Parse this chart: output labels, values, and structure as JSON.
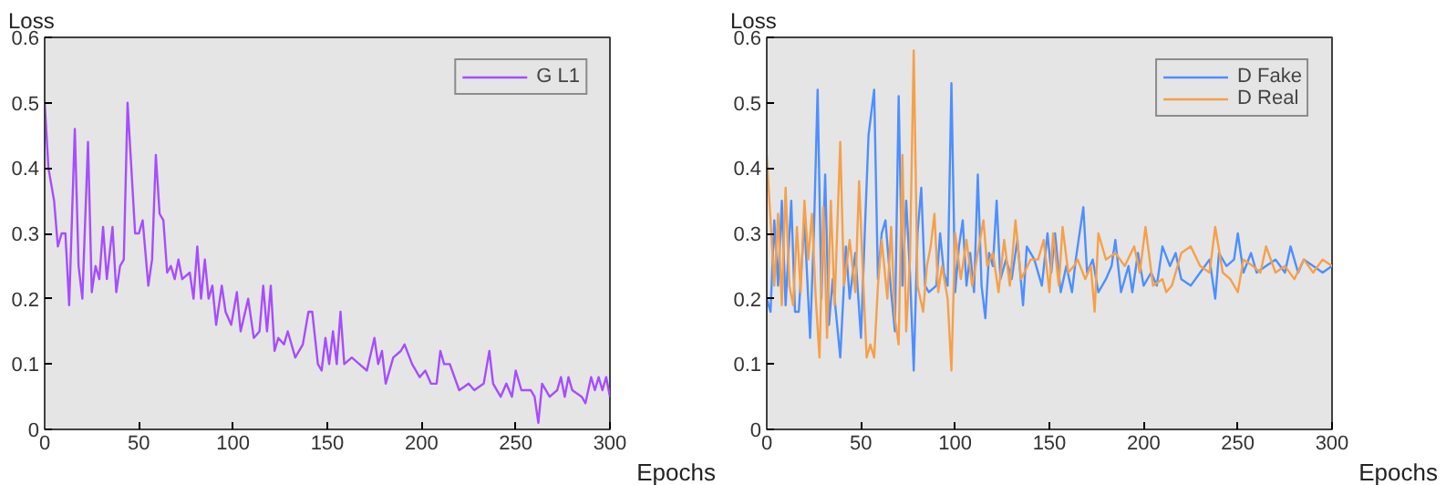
{
  "chart_data": [
    {
      "type": "line",
      "xlabel": "Epochs",
      "ylabel": "Loss",
      "xlim": [
        0,
        300
      ],
      "ylim": [
        0,
        0.6
      ],
      "xticks": [
        0,
        50,
        100,
        150,
        200,
        250,
        300
      ],
      "yticks": [
        0,
        0.1,
        0.2,
        0.3,
        0.4,
        0.5,
        0.6
      ],
      "legend": "top right",
      "series": [
        {
          "name": "G L1",
          "color": "#a64dff",
          "x": [
            0,
            2,
            5,
            7,
            9,
            11,
            13,
            16,
            18,
            20,
            23,
            25,
            27,
            29,
            31,
            33,
            36,
            38,
            40,
            42,
            44,
            46,
            48,
            50,
            52,
            55,
            57,
            59,
            61,
            63,
            65,
            67,
            69,
            71,
            73,
            77,
            79,
            81,
            83,
            85,
            87,
            89,
            91,
            94,
            96,
            99,
            102,
            104,
            108,
            111,
            114,
            116,
            118,
            120,
            122,
            124,
            127,
            129,
            133,
            137,
            140,
            142,
            145,
            147,
            149,
            151,
            153,
            155,
            157,
            159,
            163,
            167,
            171,
            175,
            177,
            179,
            181,
            185,
            189,
            191,
            195,
            199,
            202,
            205,
            208,
            210,
            212,
            215,
            220,
            225,
            228,
            233,
            236,
            238,
            242,
            245,
            248,
            250,
            253,
            258,
            260,
            262,
            264,
            268,
            272,
            274,
            276,
            278,
            280,
            285,
            287,
            290,
            292,
            294,
            296,
            298,
            300
          ],
          "values": [
            0.5,
            0.4,
            0.35,
            0.28,
            0.3,
            0.3,
            0.19,
            0.46,
            0.25,
            0.2,
            0.44,
            0.21,
            0.25,
            0.23,
            0.31,
            0.23,
            0.31,
            0.21,
            0.25,
            0.26,
            0.5,
            0.4,
            0.3,
            0.3,
            0.32,
            0.22,
            0.26,
            0.42,
            0.33,
            0.32,
            0.24,
            0.25,
            0.23,
            0.26,
            0.23,
            0.24,
            0.2,
            0.28,
            0.2,
            0.26,
            0.2,
            0.22,
            0.16,
            0.22,
            0.18,
            0.16,
            0.21,
            0.15,
            0.2,
            0.14,
            0.15,
            0.22,
            0.15,
            0.22,
            0.12,
            0.14,
            0.13,
            0.15,
            0.11,
            0.13,
            0.18,
            0.18,
            0.1,
            0.09,
            0.14,
            0.1,
            0.15,
            0.1,
            0.18,
            0.1,
            0.11,
            0.1,
            0.09,
            0.14,
            0.1,
            0.12,
            0.07,
            0.11,
            0.12,
            0.13,
            0.1,
            0.08,
            0.09,
            0.07,
            0.07,
            0.12,
            0.1,
            0.1,
            0.06,
            0.07,
            0.06,
            0.07,
            0.12,
            0.07,
            0.05,
            0.07,
            0.05,
            0.09,
            0.06,
            0.06,
            0.05,
            0.01,
            0.07,
            0.05,
            0.06,
            0.08,
            0.05,
            0.08,
            0.06,
            0.05,
            0.04,
            0.08,
            0.06,
            0.08,
            0.06,
            0.08,
            0.05
          ]
        }
      ]
    },
    {
      "type": "line",
      "xlabel": "Epochs",
      "ylabel": "Loss",
      "xlim": [
        0,
        300
      ],
      "ylim": [
        0,
        0.6
      ],
      "xticks": [
        0,
        50,
        100,
        150,
        200,
        250,
        300
      ],
      "yticks": [
        0,
        0.1,
        0.2,
        0.3,
        0.4,
        0.5,
        0.6
      ],
      "legend": "top right",
      "series": [
        {
          "name": "D Fake",
          "color": "#4d8fff",
          "x": [
            0,
            2,
            4,
            6,
            8,
            10,
            13,
            15,
            17,
            20,
            23,
            25,
            27,
            29,
            31,
            33,
            35,
            39,
            42,
            44,
            47,
            50,
            52,
            54,
            57,
            59,
            61,
            63,
            66,
            68,
            70,
            72,
            74,
            76,
            78,
            80,
            82,
            84,
            86,
            90,
            92,
            94,
            96,
            98,
            100,
            102,
            104,
            106,
            108,
            110,
            112,
            114,
            116,
            118,
            120,
            122,
            124,
            127,
            130,
            133,
            136,
            138,
            142,
            146,
            149,
            151,
            153,
            156,
            159,
            162,
            164,
            168,
            170,
            173,
            176,
            180,
            183,
            185,
            188,
            192,
            194,
            197,
            200,
            204,
            207,
            210,
            214,
            217,
            220,
            225,
            230,
            235,
            238,
            240,
            244,
            248,
            250,
            253,
            257,
            260,
            265,
            270,
            275,
            278,
            282,
            285,
            290,
            295,
            300
          ],
          "values": [
            0.2,
            0.18,
            0.32,
            0.22,
            0.35,
            0.19,
            0.35,
            0.18,
            0.18,
            0.32,
            0.14,
            0.3,
            0.52,
            0.2,
            0.39,
            0.16,
            0.23,
            0.11,
            0.28,
            0.2,
            0.27,
            0.14,
            0.3,
            0.45,
            0.52,
            0.23,
            0.3,
            0.32,
            0.21,
            0.15,
            0.51,
            0.22,
            0.35,
            0.24,
            0.09,
            0.3,
            0.37,
            0.22,
            0.21,
            0.22,
            0.3,
            0.24,
            0.22,
            0.53,
            0.21,
            0.28,
            0.32,
            0.22,
            0.27,
            0.21,
            0.39,
            0.22,
            0.17,
            0.27,
            0.25,
            0.35,
            0.23,
            0.26,
            0.23,
            0.29,
            0.19,
            0.28,
            0.26,
            0.22,
            0.3,
            0.24,
            0.3,
            0.21,
            0.25,
            0.21,
            0.26,
            0.34,
            0.24,
            0.26,
            0.21,
            0.23,
            0.25,
            0.29,
            0.21,
            0.25,
            0.21,
            0.27,
            0.22,
            0.24,
            0.22,
            0.28,
            0.25,
            0.27,
            0.23,
            0.22,
            0.24,
            0.26,
            0.2,
            0.27,
            0.25,
            0.26,
            0.3,
            0.24,
            0.27,
            0.24,
            0.25,
            0.26,
            0.24,
            0.28,
            0.24,
            0.26,
            0.25,
            0.24,
            0.25
          ]
        },
        {
          "name": "D Real",
          "color": "#f5a04a",
          "x": [
            0,
            2,
            4,
            6,
            8,
            10,
            12,
            14,
            16,
            18,
            20,
            22,
            24,
            26,
            28,
            30,
            32,
            34,
            36,
            39,
            41,
            44,
            47,
            49,
            51,
            53,
            55,
            57,
            59,
            61,
            64,
            66,
            68,
            70,
            72,
            74,
            76,
            78,
            80,
            83,
            85,
            87,
            89,
            91,
            93,
            96,
            98,
            100,
            103,
            106,
            109,
            112,
            115,
            117,
            120,
            123,
            126,
            129,
            132,
            135,
            140,
            144,
            147,
            150,
            152,
            155,
            157,
            160,
            163,
            165,
            169,
            172,
            174,
            176,
            180,
            185,
            190,
            195,
            198,
            201,
            205,
            210,
            212,
            215,
            220,
            225,
            230,
            235,
            238,
            242,
            246,
            250,
            253,
            258,
            262,
            265,
            270,
            275,
            280,
            285,
            290,
            295,
            300
          ],
          "values": [
            0.42,
            0.32,
            0.22,
            0.33,
            0.19,
            0.37,
            0.22,
            0.19,
            0.31,
            0.21,
            0.35,
            0.26,
            0.33,
            0.2,
            0.11,
            0.34,
            0.14,
            0.35,
            0.19,
            0.44,
            0.22,
            0.29,
            0.21,
            0.38,
            0.24,
            0.11,
            0.13,
            0.11,
            0.22,
            0.29,
            0.2,
            0.31,
            0.17,
            0.13,
            0.42,
            0.15,
            0.26,
            0.58,
            0.22,
            0.18,
            0.25,
            0.28,
            0.33,
            0.21,
            0.25,
            0.2,
            0.09,
            0.3,
            0.23,
            0.29,
            0.22,
            0.27,
            0.32,
            0.25,
            0.27,
            0.21,
            0.29,
            0.22,
            0.32,
            0.23,
            0.26,
            0.26,
            0.29,
            0.21,
            0.3,
            0.22,
            0.31,
            0.24,
            0.25,
            0.26,
            0.23,
            0.25,
            0.18,
            0.3,
            0.26,
            0.27,
            0.25,
            0.28,
            0.24,
            0.31,
            0.22,
            0.23,
            0.21,
            0.22,
            0.27,
            0.28,
            0.25,
            0.24,
            0.31,
            0.24,
            0.23,
            0.21,
            0.26,
            0.25,
            0.24,
            0.28,
            0.24,
            0.25,
            0.23,
            0.26,
            0.24,
            0.26,
            0.25
          ]
        }
      ]
    }
  ]
}
